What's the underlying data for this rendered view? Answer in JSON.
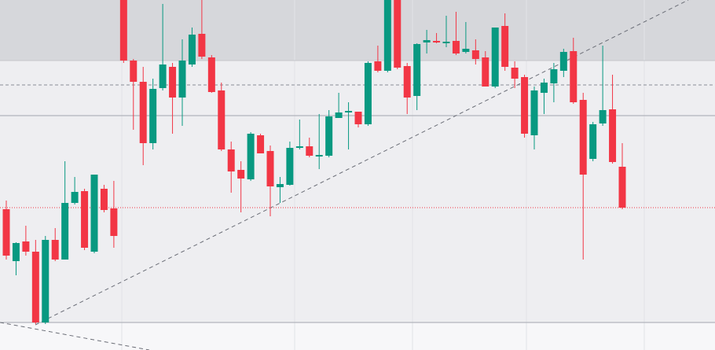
{
  "chart_data": {
    "type": "candlestick",
    "up_color": "#089981",
    "down_color": "#f23645",
    "ylim": [
      0,
      445
    ],
    "categories": [
      null,
      null,
      null,
      null,
      null,
      null,
      null,
      null,
      null,
      null,
      null,
      null,
      null,
      null,
      null,
      null,
      null,
      null,
      null,
      null,
      null,
      null,
      null,
      null,
      null,
      null,
      null,
      null,
      null,
      null,
      null,
      null,
      null,
      null,
      null,
      null,
      null,
      null,
      null,
      null,
      null,
      null,
      null,
      null,
      null,
      null,
      null,
      null,
      null,
      null,
      null,
      null,
      null,
      null,
      null,
      null,
      null,
      null,
      null,
      null,
      null,
      null,
      null,
      null
    ],
    "open": [
      179,
      113,
      138,
      125,
      35,
      140,
      115,
      187,
      202,
      125,
      205,
      180,
      445,
      368,
      341,
      263,
      333,
      360,
      321,
      363,
      402,
      372,
      330,
      255,
      229,
      217,
      273,
      253,
      207,
      210,
      257,
      259,
      246,
      247,
      295,
      302,
      303,
      287,
      367,
      355,
      445,
      361,
      323,
      391,
      393,
      390,
      393,
      379,
      381,
      372,
      335,
      412,
      359,
      347,
      273,
      327,
      339,
      355,
      380,
      318,
      243,
      288,
      306,
      233
    ],
    "high": [
      190,
      137,
      158,
      140,
      145,
      155,
      240,
      220,
      205,
      223,
      210,
      215,
      445,
      370,
      360,
      345,
      440,
      365,
      395,
      410,
      445,
      375,
      340,
      265,
      240,
      277,
      275,
      260,
      220,
      265,
      293,
      270,
      300,
      305,
      327,
      315,
      303,
      367,
      387,
      445,
      445,
      365,
      390,
      407,
      403,
      425,
      430,
      417,
      395,
      380,
      410,
      428,
      367,
      350,
      335,
      345,
      365,
      383,
      397,
      327,
      290,
      387,
      350,
      263
    ],
    "low": [
      115,
      95,
      120,
      33,
      33,
      113,
      115,
      185,
      127,
      123,
      175,
      130,
      365,
      280,
      235,
      255,
      330,
      275,
      285,
      360,
      370,
      327,
      253,
      200,
      175,
      215,
      250,
      170,
      187,
      209,
      255,
      245,
      230,
      245,
      295,
      255,
      283,
      285,
      353,
      353,
      357,
      300,
      305,
      377,
      390,
      385,
      375,
      377,
      363,
      335,
      333,
      355,
      333,
      270,
      255,
      300,
      315,
      347,
      313,
      115,
      240,
      285,
      237,
      179
    ],
    "close": [
      120,
      136,
      125,
      35,
      140,
      115,
      187,
      201,
      130,
      223,
      178,
      145,
      368,
      341,
      263,
      332,
      363,
      321,
      368,
      401,
      373,
      328,
      255,
      227,
      218,
      275,
      250,
      208,
      211,
      257,
      259,
      247,
      248,
      297,
      302,
      304,
      287,
      365,
      355,
      445,
      359,
      321,
      389,
      394,
      391,
      392,
      377,
      383,
      370,
      335,
      410,
      360,
      345,
      275,
      330,
      340,
      357,
      379,
      315,
      223,
      287,
      305,
      239,
      181
    ]
  }
}
